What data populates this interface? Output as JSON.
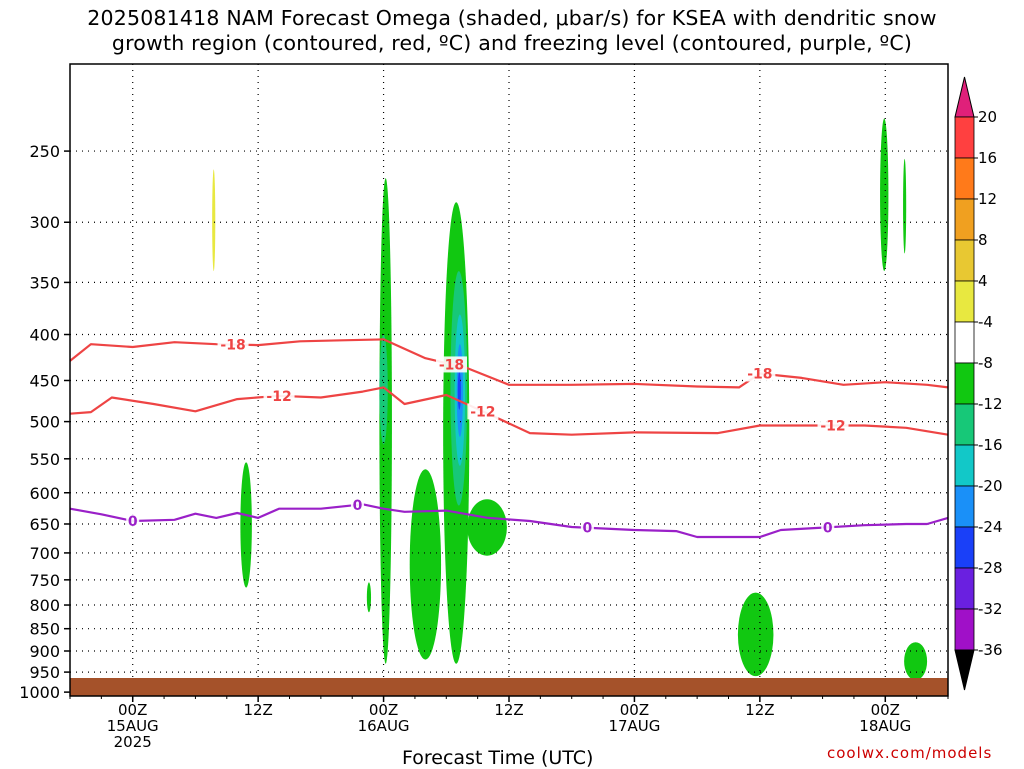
{
  "title_line1": "2025081418 NAM Forecast Omega (shaded, μbar/s) for KSEA with dendritic snow",
  "title_line2": "growth region (contoured, red, ºC) and freezing level (contoured, purple, ºC)",
  "credit": "coolwx.com/models",
  "chart_data": {
    "type": "heatmap",
    "title": "2025081418 NAM Forecast Omega (shaded, μbar/s) for KSEA with dendritic snow growth region (contoured, red, ºC) and freezing level (contoured, purple, ºC)",
    "xlabel": "Forecast Time (UTC)",
    "ylabel": "",
    "x_range_hours_from_15AUG00Z": [
      -6,
      78
    ],
    "y_scale": "log-pressure",
    "y_range_mb": [
      1010,
      200
    ],
    "y_ticks": [
      "250",
      "300",
      "350",
      "400",
      "450",
      "500",
      "550",
      "600",
      "650",
      "700",
      "750",
      "800",
      "850",
      "900",
      "950",
      "1000"
    ],
    "x_ticks": [
      {
        "h": 0,
        "l1": "00Z",
        "l2": "15AUG",
        "l3": "2025"
      },
      {
        "h": 12,
        "l1": "12Z",
        "l2": "",
        "l3": ""
      },
      {
        "h": 24,
        "l1": "00Z",
        "l2": "16AUG",
        "l3": ""
      },
      {
        "h": 36,
        "l1": "12Z",
        "l2": "",
        "l3": ""
      },
      {
        "h": 48,
        "l1": "00Z",
        "l2": "17AUG",
        "l3": ""
      },
      {
        "h": 60,
        "l1": "12Z",
        "l2": "",
        "l3": ""
      },
      {
        "h": 72,
        "l1": "00Z",
        "l2": "18AUG",
        "l3": ""
      }
    ],
    "grid": true,
    "colorbar": {
      "position": "right",
      "levels": [
        20,
        16,
        12,
        8,
        4,
        -4,
        -8,
        -12,
        -16,
        -20,
        -24,
        -28,
        -32,
        -36
      ],
      "colors": [
        "#ff4040",
        "#ff7a1a",
        "#f0a020",
        "#e8c832",
        "#e8e840",
        "#ffffff",
        "#11c811",
        "#17c878",
        "#12c8c8",
        "#1a90f8",
        "#1a40f8",
        "#6a20e0",
        "#a010c8",
        "#aaaaaa",
        "#000000"
      ],
      "top_color": "#e0207a"
    },
    "omega_regions": [
      {
        "level": 4,
        "color": "#e8e840",
        "h": [
          7.6,
          7.9
        ],
        "p": [
          340,
          262
        ]
      },
      {
        "level": -4,
        "color": "#11c811",
        "h": [
          23.6,
          24.8
        ],
        "p": [
          930,
          268
        ]
      },
      {
        "level": -4,
        "color": "#11c811",
        "h": [
          29.7,
          32.2
        ],
        "p": [
          930,
          285
        ]
      },
      {
        "level": -4,
        "color": "#11c811",
        "h": [
          26.5,
          29.5
        ],
        "p": [
          920,
          565
        ]
      },
      {
        "level": -4,
        "color": "#11c811",
        "h": [
          32.0,
          35.8
        ],
        "p": [
          705,
          610
        ]
      },
      {
        "level": -4,
        "color": "#11c811",
        "h": [
          10.3,
          11.4
        ],
        "p": [
          765,
          555
        ]
      },
      {
        "level": -4,
        "color": "#11c811",
        "h": [
          22.4,
          22.8
        ],
        "p": [
          815,
          755
        ]
      },
      {
        "level": -4,
        "color": "#11c811",
        "h": [
          71.5,
          72.3
        ],
        "p": [
          340,
          230
        ]
      },
      {
        "level": -4,
        "color": "#11c811",
        "h": [
          73.7,
          74.0
        ],
        "p": [
          325,
          255
        ]
      },
      {
        "level": -4,
        "color": "#11c811",
        "h": [
          57.9,
          61.3
        ],
        "p": [
          960,
          775
        ]
      },
      {
        "level": -4,
        "color": "#11c811",
        "h": [
          73.8,
          76.0
        ],
        "p": [
          970,
          880
        ]
      },
      {
        "level": -8,
        "color": "#17c878",
        "h": [
          30.4,
          32.0
        ],
        "p": [
          620,
          340
        ]
      },
      {
        "level": -8,
        "color": "#17c878",
        "h": [
          23.6,
          24.4
        ],
        "p": [
          530,
          400
        ]
      },
      {
        "level": -12,
        "color": "#12c8c8",
        "h": [
          30.8,
          31.8
        ],
        "p": [
          560,
          380
        ]
      },
      {
        "level": -16,
        "color": "#1a90f8",
        "h": [
          31.0,
          31.6
        ],
        "p": [
          520,
          410
        ]
      },
      {
        "level": -20,
        "color": "#1a40f8",
        "h": [
          31.1,
          31.4
        ],
        "p": [
          485,
          440
        ]
      }
    ],
    "contours": [
      {
        "value": -18,
        "color": "#ee4444",
        "label": "-18",
        "label_at_h": [
          9.6,
          30.5,
          60.0
        ],
        "points": [
          [
            -6,
            428
          ],
          [
            -4,
            410
          ],
          [
            0,
            413
          ],
          [
            4,
            408
          ],
          [
            8,
            410
          ],
          [
            12,
            411
          ],
          [
            16,
            407
          ],
          [
            20,
            406
          ],
          [
            24,
            405
          ],
          [
            28,
            425
          ],
          [
            32,
            436
          ],
          [
            36,
            455
          ],
          [
            42,
            455
          ],
          [
            48,
            454
          ],
          [
            54,
            457
          ],
          [
            58,
            458
          ],
          [
            60,
            442
          ],
          [
            64,
            447
          ],
          [
            68,
            455
          ],
          [
            72,
            452
          ],
          [
            76,
            455
          ],
          [
            78,
            458
          ]
        ]
      },
      {
        "value": -12,
        "color": "#ee4444",
        "label": "-12",
        "label_at_h": [
          14.0,
          33.5,
          67.0
        ],
        "points": [
          [
            -6,
            490
          ],
          [
            -4,
            488
          ],
          [
            -2,
            470
          ],
          [
            2,
            478
          ],
          [
            6,
            487
          ],
          [
            10,
            472
          ],
          [
            14,
            468
          ],
          [
            18,
            470
          ],
          [
            22,
            463
          ],
          [
            24,
            458
          ],
          [
            26,
            478
          ],
          [
            30,
            467
          ],
          [
            34,
            490
          ],
          [
            38,
            515
          ],
          [
            42,
            517
          ],
          [
            48,
            514
          ],
          [
            56,
            515
          ],
          [
            60,
            505
          ],
          [
            64,
            505
          ],
          [
            70,
            505
          ],
          [
            74,
            508
          ],
          [
            78,
            517
          ]
        ]
      },
      {
        "value": 0,
        "color": "#9a20c8",
        "label": "0",
        "label_at_h": [
          0.0,
          21.5,
          43.5,
          66.5
        ],
        "points": [
          [
            -6,
            625
          ],
          [
            -3,
            634
          ],
          [
            0,
            645
          ],
          [
            4,
            643
          ],
          [
            6,
            633
          ],
          [
            8,
            640
          ],
          [
            10,
            632
          ],
          [
            12,
            640
          ],
          [
            14,
            625
          ],
          [
            18,
            625
          ],
          [
            22,
            618
          ],
          [
            24,
            625
          ],
          [
            26,
            630
          ],
          [
            30,
            628
          ],
          [
            34,
            640
          ],
          [
            38,
            645
          ],
          [
            42,
            655
          ],
          [
            48,
            660
          ],
          [
            52,
            662
          ],
          [
            54,
            672
          ],
          [
            56,
            672
          ],
          [
            60,
            672
          ],
          [
            62,
            660
          ],
          [
            66,
            656
          ],
          [
            70,
            652
          ],
          [
            74,
            650
          ],
          [
            76,
            650
          ],
          [
            78,
            640
          ]
        ]
      }
    ]
  }
}
